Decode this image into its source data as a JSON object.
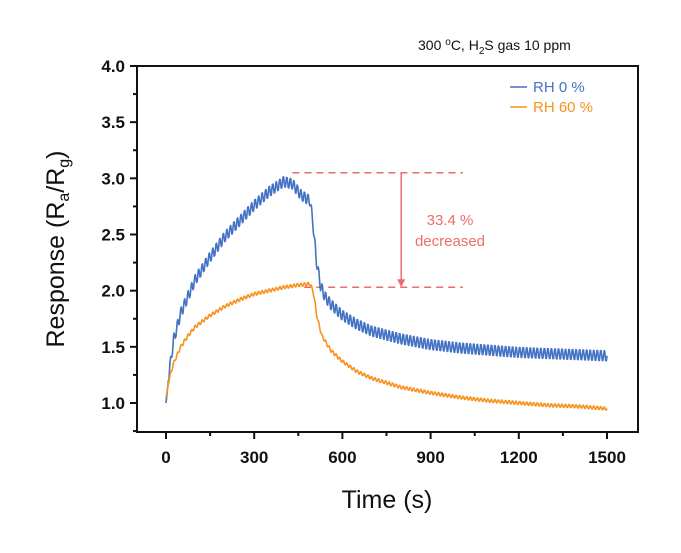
{
  "chart_data": {
    "type": "line",
    "title": "",
    "condition_label": {
      "prefix": "300 ",
      "deg": "o",
      "mid": "C, H",
      "sub": "2",
      "suffix": "S gas 10 ppm"
    },
    "xlabel": "Time (s)",
    "ylabel": {
      "main": "Response (R",
      "sub1": "a",
      "mid": "/R",
      "sub2": "g",
      "end": ")"
    },
    "xlim": [
      -110,
      1600
    ],
    "ylim": [
      0.6,
      4.0
    ],
    "xticks": [
      0,
      300,
      600,
      900,
      1200,
      1500
    ],
    "xtick_labels": [
      "0",
      "300",
      "600",
      "900",
      "1200",
      "1500"
    ],
    "yticks": [
      1.0,
      1.5,
      2.0,
      2.5,
      3.0,
      3.5,
      4.0
    ],
    "ytick_labels": [
      "1.0",
      "1.5",
      "2.0",
      "2.5",
      "3.0",
      "3.5",
      "4.0"
    ],
    "grid": false,
    "legend_position": "top-right",
    "series": [
      {
        "name": "RH 0 %",
        "color": "#4472c4",
        "x": [
          0,
          10,
          25,
          50,
          75,
          100,
          150,
          200,
          250,
          300,
          350,
          400,
          430,
          460,
          490,
          500,
          510,
          525,
          540,
          560,
          600,
          650,
          700,
          800,
          900,
          1000,
          1100,
          1200,
          1300,
          1400,
          1500
        ],
        "y": [
          1.0,
          1.25,
          1.55,
          1.8,
          1.95,
          2.1,
          2.3,
          2.48,
          2.62,
          2.76,
          2.88,
          2.97,
          2.95,
          2.85,
          2.8,
          2.6,
          2.3,
          2.05,
          1.95,
          1.88,
          1.78,
          1.7,
          1.64,
          1.57,
          1.52,
          1.49,
          1.47,
          1.45,
          1.44,
          1.43,
          1.42
        ],
        "oscillation_amplitude": 0.05
      },
      {
        "name": "RH 60 %",
        "color": "#f7931e",
        "x": [
          0,
          10,
          25,
          50,
          75,
          100,
          150,
          200,
          250,
          300,
          350,
          400,
          450,
          490,
          500,
          515,
          530,
          560,
          600,
          650,
          700,
          800,
          900,
          1000,
          1100,
          1200,
          1300,
          1400,
          1500
        ],
        "y": [
          1.05,
          1.2,
          1.35,
          1.5,
          1.6,
          1.68,
          1.78,
          1.86,
          1.92,
          1.97,
          2.0,
          2.03,
          2.05,
          2.06,
          2.0,
          1.75,
          1.6,
          1.47,
          1.37,
          1.28,
          1.22,
          1.14,
          1.09,
          1.05,
          1.02,
          1.0,
          0.98,
          0.97,
          0.95
        ],
        "oscillation_amplitude": 0.015
      }
    ],
    "annotation": {
      "upper_level": 3.05,
      "lower_level": 2.03,
      "arrow_x": 800,
      "line_x_range": [
        430,
        1010
      ],
      "lower_line_x_range": [
        470,
        1010
      ],
      "text_line1": "33.4 %",
      "text_line2": "decreased",
      "color": "#ef6b6b"
    }
  }
}
